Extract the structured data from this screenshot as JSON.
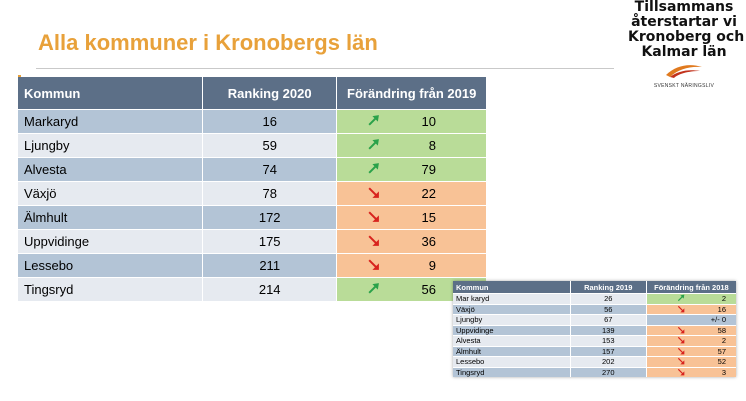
{
  "header": {
    "title": "Alla kommuner i Kronobergs län"
  },
  "logo": {
    "lines": [
      "Tillsammans",
      "återstartar vi",
      "Kronoberg och",
      "Kalmar län"
    ],
    "subtitle": "SVENSKT NÄRINGSLIV"
  },
  "colors": {
    "title": "#e8a13a",
    "header": "#5c6f87",
    "up": "#b9dc98",
    "down": "#f8c296",
    "arrow_up": "#2aa24a",
    "arrow_down": "#d8231e"
  },
  "main_table": {
    "columns": [
      "Kommun",
      "Ranking 2020",
      "Förändring från 2019"
    ],
    "rows": [
      {
        "kommun": "Markaryd",
        "rank": "16",
        "change": "10",
        "dir": "up"
      },
      {
        "kommun": "Ljungby",
        "rank": "59",
        "change": "8",
        "dir": "up"
      },
      {
        "kommun": "Alvesta",
        "rank": "74",
        "change": "79",
        "dir": "up"
      },
      {
        "kommun": "Växjö",
        "rank": "78",
        "change": "22",
        "dir": "down"
      },
      {
        "kommun": "Älmhult",
        "rank": "172",
        "change": "15",
        "dir": "down"
      },
      {
        "kommun": "Uppvidinge",
        "rank": "175",
        "change": "36",
        "dir": "down"
      },
      {
        "kommun": "Lessebo",
        "rank": "211",
        "change": "9",
        "dir": "down"
      },
      {
        "kommun": "Tingsryd",
        "rank": "214",
        "change": "56",
        "dir": "up"
      }
    ]
  },
  "small_table": {
    "columns": [
      "Kommun",
      "Ranking 2019",
      "Förändring från 2018"
    ],
    "rows": [
      {
        "kommun": "Mar karyd",
        "rank": "26",
        "change": "2",
        "dir": "up"
      },
      {
        "kommun": "Växjö",
        "rank": "56",
        "change": "16",
        "dir": "down"
      },
      {
        "kommun": "Ljungby",
        "rank": "67",
        "change": "+/- 0",
        "dir": "flat"
      },
      {
        "kommun": "Uppvidinge",
        "rank": "139",
        "change": "58",
        "dir": "down"
      },
      {
        "kommun": "Alvesta",
        "rank": "153",
        "change": "2",
        "dir": "down"
      },
      {
        "kommun": "Älmhult",
        "rank": "157",
        "change": "57",
        "dir": "down"
      },
      {
        "kommun": "Lessebo",
        "rank": "202",
        "change": "52",
        "dir": "down"
      },
      {
        "kommun": "Tingsryd",
        "rank": "270",
        "change": "3",
        "dir": "down"
      }
    ]
  }
}
